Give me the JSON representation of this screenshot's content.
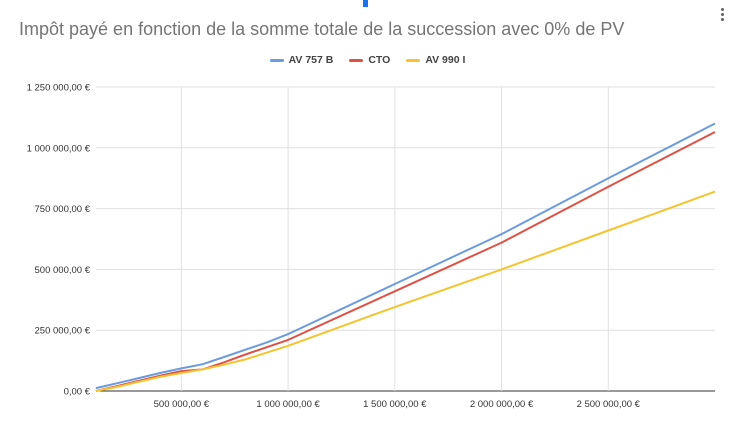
{
  "chart_data": {
    "type": "line",
    "title": "Impôt payé en fonction de la somme totale de la succession avec 0% de PV",
    "x": [
      100000,
      200000,
      300000,
      400000,
      500000,
      600000,
      700000,
      800000,
      900000,
      1000000,
      1500000,
      2000000,
      2500000,
      3000000
    ],
    "series": [
      {
        "name": "AV 757 B",
        "color": "#6b9bde",
        "values": [
          12000,
          32000,
          53000,
          74000,
          93000,
          110000,
          140000,
          170000,
          200000,
          234000,
          440000,
          645000,
          875000,
          1100000
        ]
      },
      {
        "name": "CTO",
        "color": "#de5246",
        "values": [
          0,
          20000,
          42000,
          63000,
          82000,
          89000,
          118000,
          150000,
          180000,
          210000,
          410000,
          610000,
          840000,
          1065000
        ]
      },
      {
        "name": "AV 990 I",
        "color": "#f4c430",
        "values": [
          0,
          17000,
          38000,
          58000,
          74000,
          89000,
          108000,
          130000,
          158000,
          186000,
          345000,
          500000,
          660000,
          820000
        ]
      }
    ],
    "xlim": [
      100000,
      3000000
    ],
    "ylim": [
      0,
      1250000
    ],
    "xticks": [
      500000,
      1000000,
      1500000,
      2000000,
      2500000
    ],
    "xtick_labels": [
      "500 000,00 €",
      "1 000 000,00 €",
      "1 500 000,00 €",
      "2 000 000,00 €",
      "2 500 000,00 €"
    ],
    "yticks": [
      0,
      250000,
      500000,
      750000,
      1000000,
      1250000
    ],
    "ytick_labels": [
      "0,00 €",
      "250 000,00 €",
      "500 000,00 €",
      "750 000,00 €",
      "1 000 000,00 €",
      "1 250 000,00 €"
    ],
    "grid": true,
    "legend_position": "top"
  }
}
